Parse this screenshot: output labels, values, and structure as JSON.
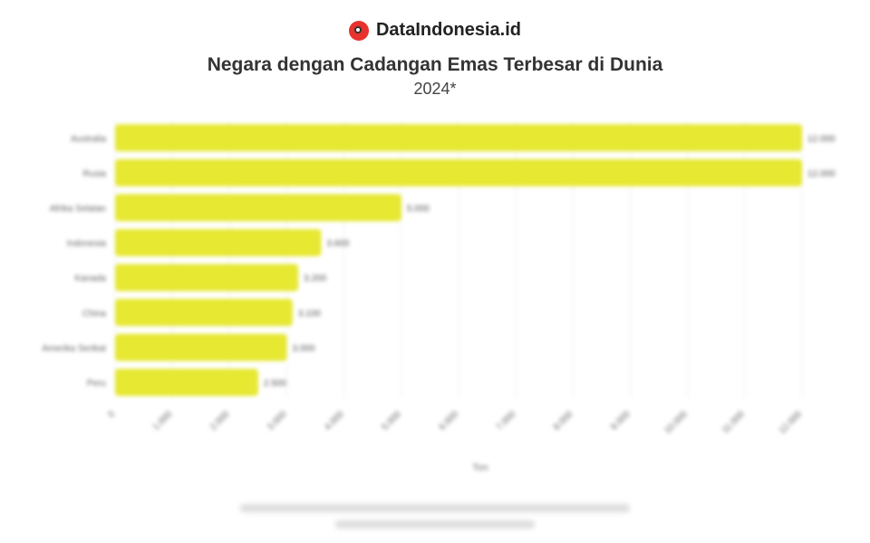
{
  "brand": {
    "name": "DataIndonesia.id",
    "accent": "#e8322d"
  },
  "title": "Negara dengan Cadangan Emas Terbesar di Dunia",
  "subtitle": "2024*",
  "chart_data": {
    "type": "bar",
    "orientation": "horizontal",
    "categories": [
      "Australia",
      "Rusia",
      "Afrika Selatan",
      "Indonesia",
      "Kanada",
      "China",
      "Amerika Serikat",
      "Peru"
    ],
    "values": [
      12000,
      12000,
      5000,
      3600,
      3200,
      3100,
      3000,
      2500
    ],
    "data_labels": [
      "12.000",
      "12.000",
      "5.000",
      "3.600",
      "3.200",
      "3.100",
      "3.000",
      "2.500"
    ],
    "xlim": [
      0,
      12000
    ],
    "xticks": [
      0,
      1000,
      2000,
      3000,
      4000,
      5000,
      6000,
      7000,
      8000,
      9000,
      10000,
      11000,
      12000
    ],
    "xtick_labels": [
      "0",
      "1.000",
      "2.000",
      "3.000",
      "4.000",
      "5.000",
      "6.000",
      "7.000",
      "8.000",
      "9.000",
      "10.000",
      "11.000",
      "12.000"
    ],
    "xlabel": "Ton",
    "grid": true,
    "bar_color": "#e6e832"
  }
}
